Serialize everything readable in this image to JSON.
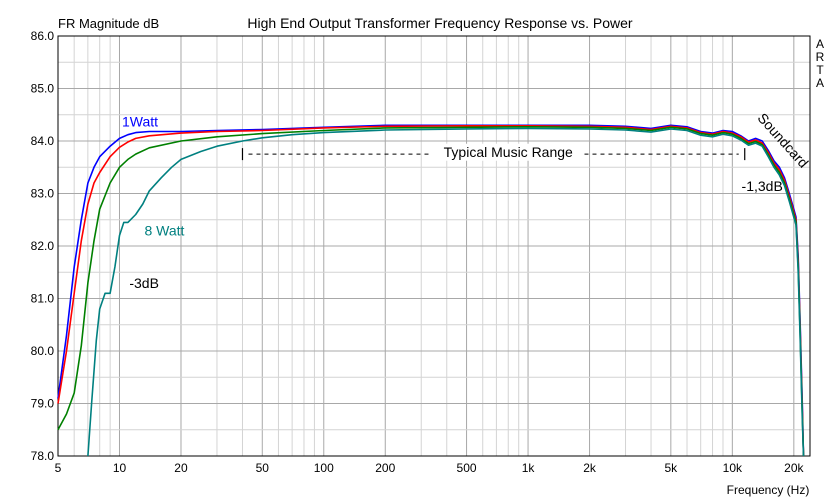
{
  "chart_data": {
    "type": "line",
    "title": "High End Output Transformer Frequency Response vs. Power",
    "ylabel": "FR Magnitude dB",
    "xlabel": "Frequency (Hz)",
    "watermark": "ARTA",
    "x_scale": "log",
    "xlim": [
      5,
      24000
    ],
    "ylim": [
      78.0,
      86.0
    ],
    "grid": true,
    "x_tick_labels": [
      {
        "v": 5,
        "label": "5"
      },
      {
        "v": 10,
        "label": "10"
      },
      {
        "v": 20,
        "label": "20"
      },
      {
        "v": 50,
        "label": "50"
      },
      {
        "v": 100,
        "label": "100"
      },
      {
        "v": 200,
        "label": "200"
      },
      {
        "v": 500,
        "label": "500"
      },
      {
        "v": 1000,
        "label": "1k"
      },
      {
        "v": 2000,
        "label": "2k"
      },
      {
        "v": 5000,
        "label": "5k"
      },
      {
        "v": 10000,
        "label": "10k"
      },
      {
        "v": 20000,
        "label": "20k"
      }
    ],
    "y_ticks": [
      78.0,
      79.0,
      80.0,
      81.0,
      82.0,
      83.0,
      84.0,
      85.0,
      86.0
    ],
    "series": [
      {
        "color": "#0000ff",
        "points": [
          [
            5,
            79.1
          ],
          [
            5.5,
            80.3
          ],
          [
            6,
            81.6
          ],
          [
            6.5,
            82.5
          ],
          [
            7,
            83.2
          ],
          [
            7.5,
            83.5
          ],
          [
            8,
            83.7
          ],
          [
            9,
            83.9
          ],
          [
            10,
            84.05
          ],
          [
            11,
            84.12
          ],
          [
            12,
            84.16
          ],
          [
            14,
            84.18
          ],
          [
            20,
            84.18
          ],
          [
            30,
            84.2
          ],
          [
            50,
            84.22
          ],
          [
            100,
            84.26
          ],
          [
            200,
            84.3
          ],
          [
            500,
            84.3
          ],
          [
            1000,
            84.3
          ],
          [
            2000,
            84.3
          ],
          [
            3000,
            84.28
          ],
          [
            4000,
            84.24
          ],
          [
            5000,
            84.3
          ],
          [
            6000,
            84.27
          ],
          [
            7000,
            84.18
          ],
          [
            8000,
            84.15
          ],
          [
            9000,
            84.2
          ],
          [
            10000,
            84.18
          ],
          [
            11000,
            84.1
          ],
          [
            12000,
            84.0
          ],
          [
            13000,
            84.05
          ],
          [
            14000,
            84.0
          ],
          [
            15000,
            83.82
          ],
          [
            16000,
            83.62
          ],
          [
            17000,
            83.5
          ],
          [
            18000,
            83.3
          ],
          [
            19000,
            83.0
          ],
          [
            20000,
            82.7
          ],
          [
            20500,
            82.55
          ],
          [
            21000,
            81.8
          ],
          [
            21500,
            80.5
          ],
          [
            22000,
            79.0
          ],
          [
            22300,
            78.0
          ]
        ]
      },
      {
        "color": "#ff0000",
        "points": [
          [
            5,
            79.0
          ],
          [
            5.5,
            80.0
          ],
          [
            6,
            81.1
          ],
          [
            6.5,
            82.1
          ],
          [
            7,
            82.8
          ],
          [
            7.5,
            83.2
          ],
          [
            8,
            83.4
          ],
          [
            9,
            83.7
          ],
          [
            10,
            83.88
          ],
          [
            11,
            83.98
          ],
          [
            12,
            84.05
          ],
          [
            14,
            84.1
          ],
          [
            20,
            84.15
          ],
          [
            30,
            84.18
          ],
          [
            50,
            84.2
          ],
          [
            100,
            84.25
          ],
          [
            200,
            84.28
          ],
          [
            500,
            84.29
          ],
          [
            1000,
            84.29
          ],
          [
            2000,
            84.28
          ],
          [
            3000,
            84.26
          ],
          [
            4000,
            84.22
          ],
          [
            5000,
            84.28
          ],
          [
            6000,
            84.25
          ],
          [
            7000,
            84.16
          ],
          [
            8000,
            84.13
          ],
          [
            9000,
            84.18
          ],
          [
            10000,
            84.15
          ],
          [
            11000,
            84.08
          ],
          [
            12000,
            83.98
          ],
          [
            13000,
            84.02
          ],
          [
            14000,
            83.96
          ],
          [
            15000,
            83.78
          ],
          [
            16000,
            83.58
          ],
          [
            17000,
            83.45
          ],
          [
            18000,
            83.25
          ],
          [
            19000,
            82.95
          ],
          [
            20000,
            82.65
          ],
          [
            20500,
            82.5
          ],
          [
            21000,
            81.7
          ],
          [
            21500,
            80.4
          ],
          [
            22000,
            78.9
          ],
          [
            22300,
            78.0
          ]
        ]
      },
      {
        "color": "#008000",
        "points": [
          [
            5,
            78.5
          ],
          [
            5.5,
            78.8
          ],
          [
            6,
            79.2
          ],
          [
            6.5,
            80.1
          ],
          [
            7,
            81.3
          ],
          [
            7.5,
            82.1
          ],
          [
            8,
            82.7
          ],
          [
            9,
            83.2
          ],
          [
            10,
            83.5
          ],
          [
            11,
            83.65
          ],
          [
            12,
            83.75
          ],
          [
            14,
            83.87
          ],
          [
            20,
            84.0
          ],
          [
            30,
            84.08
          ],
          [
            50,
            84.14
          ],
          [
            100,
            84.2
          ],
          [
            200,
            84.25
          ],
          [
            500,
            84.26
          ],
          [
            1000,
            84.27
          ],
          [
            2000,
            84.26
          ],
          [
            3000,
            84.24
          ],
          [
            4000,
            84.2
          ],
          [
            5000,
            84.26
          ],
          [
            6000,
            84.23
          ],
          [
            7000,
            84.14
          ],
          [
            8000,
            84.11
          ],
          [
            9000,
            84.16
          ],
          [
            10000,
            84.13
          ],
          [
            11000,
            84.05
          ],
          [
            12000,
            83.95
          ],
          [
            13000,
            83.99
          ],
          [
            14000,
            83.93
          ],
          [
            15000,
            83.74
          ],
          [
            16000,
            83.54
          ],
          [
            17000,
            83.4
          ],
          [
            18000,
            83.2
          ],
          [
            19000,
            82.9
          ],
          [
            20000,
            82.6
          ],
          [
            20500,
            82.45
          ],
          [
            21000,
            81.6
          ],
          [
            21500,
            80.3
          ],
          [
            22000,
            78.8
          ],
          [
            22300,
            78.0
          ]
        ]
      },
      {
        "color": "#008080",
        "points": [
          [
            7,
            78.0
          ],
          [
            7.3,
            79.0
          ],
          [
            7.7,
            80.2
          ],
          [
            8,
            80.8
          ],
          [
            8.5,
            81.1
          ],
          [
            9,
            81.1
          ],
          [
            9.5,
            81.6
          ],
          [
            10,
            82.2
          ],
          [
            10.5,
            82.45
          ],
          [
            11,
            82.45
          ],
          [
            12,
            82.6
          ],
          [
            13,
            82.8
          ],
          [
            14,
            83.05
          ],
          [
            16,
            83.3
          ],
          [
            18,
            83.5
          ],
          [
            20,
            83.65
          ],
          [
            25,
            83.8
          ],
          [
            30,
            83.9
          ],
          [
            40,
            84.0
          ],
          [
            50,
            84.06
          ],
          [
            70,
            84.12
          ],
          [
            100,
            84.16
          ],
          [
            200,
            84.21
          ],
          [
            500,
            84.23
          ],
          [
            1000,
            84.24
          ],
          [
            2000,
            84.23
          ],
          [
            3000,
            84.21
          ],
          [
            4000,
            84.17
          ],
          [
            5000,
            84.23
          ],
          [
            6000,
            84.2
          ],
          [
            7000,
            84.11
          ],
          [
            8000,
            84.08
          ],
          [
            9000,
            84.13
          ],
          [
            10000,
            84.1
          ],
          [
            11000,
            84.02
          ],
          [
            12000,
            83.92
          ],
          [
            13000,
            83.96
          ],
          [
            14000,
            83.9
          ],
          [
            15000,
            83.7
          ],
          [
            16000,
            83.5
          ],
          [
            17000,
            83.35
          ],
          [
            18000,
            83.15
          ],
          [
            19000,
            82.85
          ],
          [
            20000,
            82.55
          ],
          [
            20500,
            82.4
          ],
          [
            21000,
            81.5
          ],
          [
            21500,
            80.2
          ],
          [
            22000,
            78.7
          ],
          [
            22300,
            78.0
          ]
        ]
      }
    ],
    "annotations": [
      {
        "text": "1Watt",
        "color": "#0000ff",
        "x": 12.6,
        "y": 84.28,
        "anchor": "middle",
        "rotate": 0
      },
      {
        "text": "8 Watt",
        "color": "#008080",
        "x": 16.6,
        "y": 82.2,
        "anchor": "middle",
        "rotate": 0
      },
      {
        "text": "-3dB",
        "color": "#000000",
        "x": 13.2,
        "y": 81.2,
        "anchor": "middle",
        "rotate": 0
      },
      {
        "text": "Typical Music Range",
        "color": "#000000",
        "x": 800,
        "y": 83.7,
        "anchor": "middle",
        "rotate": 0
      },
      {
        "text": "-1,3dB",
        "color": "#000000",
        "x": 14000,
        "y": 83.05,
        "anchor": "middle",
        "rotate": 0
      },
      {
        "text": "Soundcard",
        "color": "#000000",
        "x": 17000,
        "y": 83.95,
        "anchor": "middle",
        "rotate": 48
      }
    ],
    "range_marker": {
      "from": 40,
      "to": 11500,
      "y": 83.75
    }
  }
}
